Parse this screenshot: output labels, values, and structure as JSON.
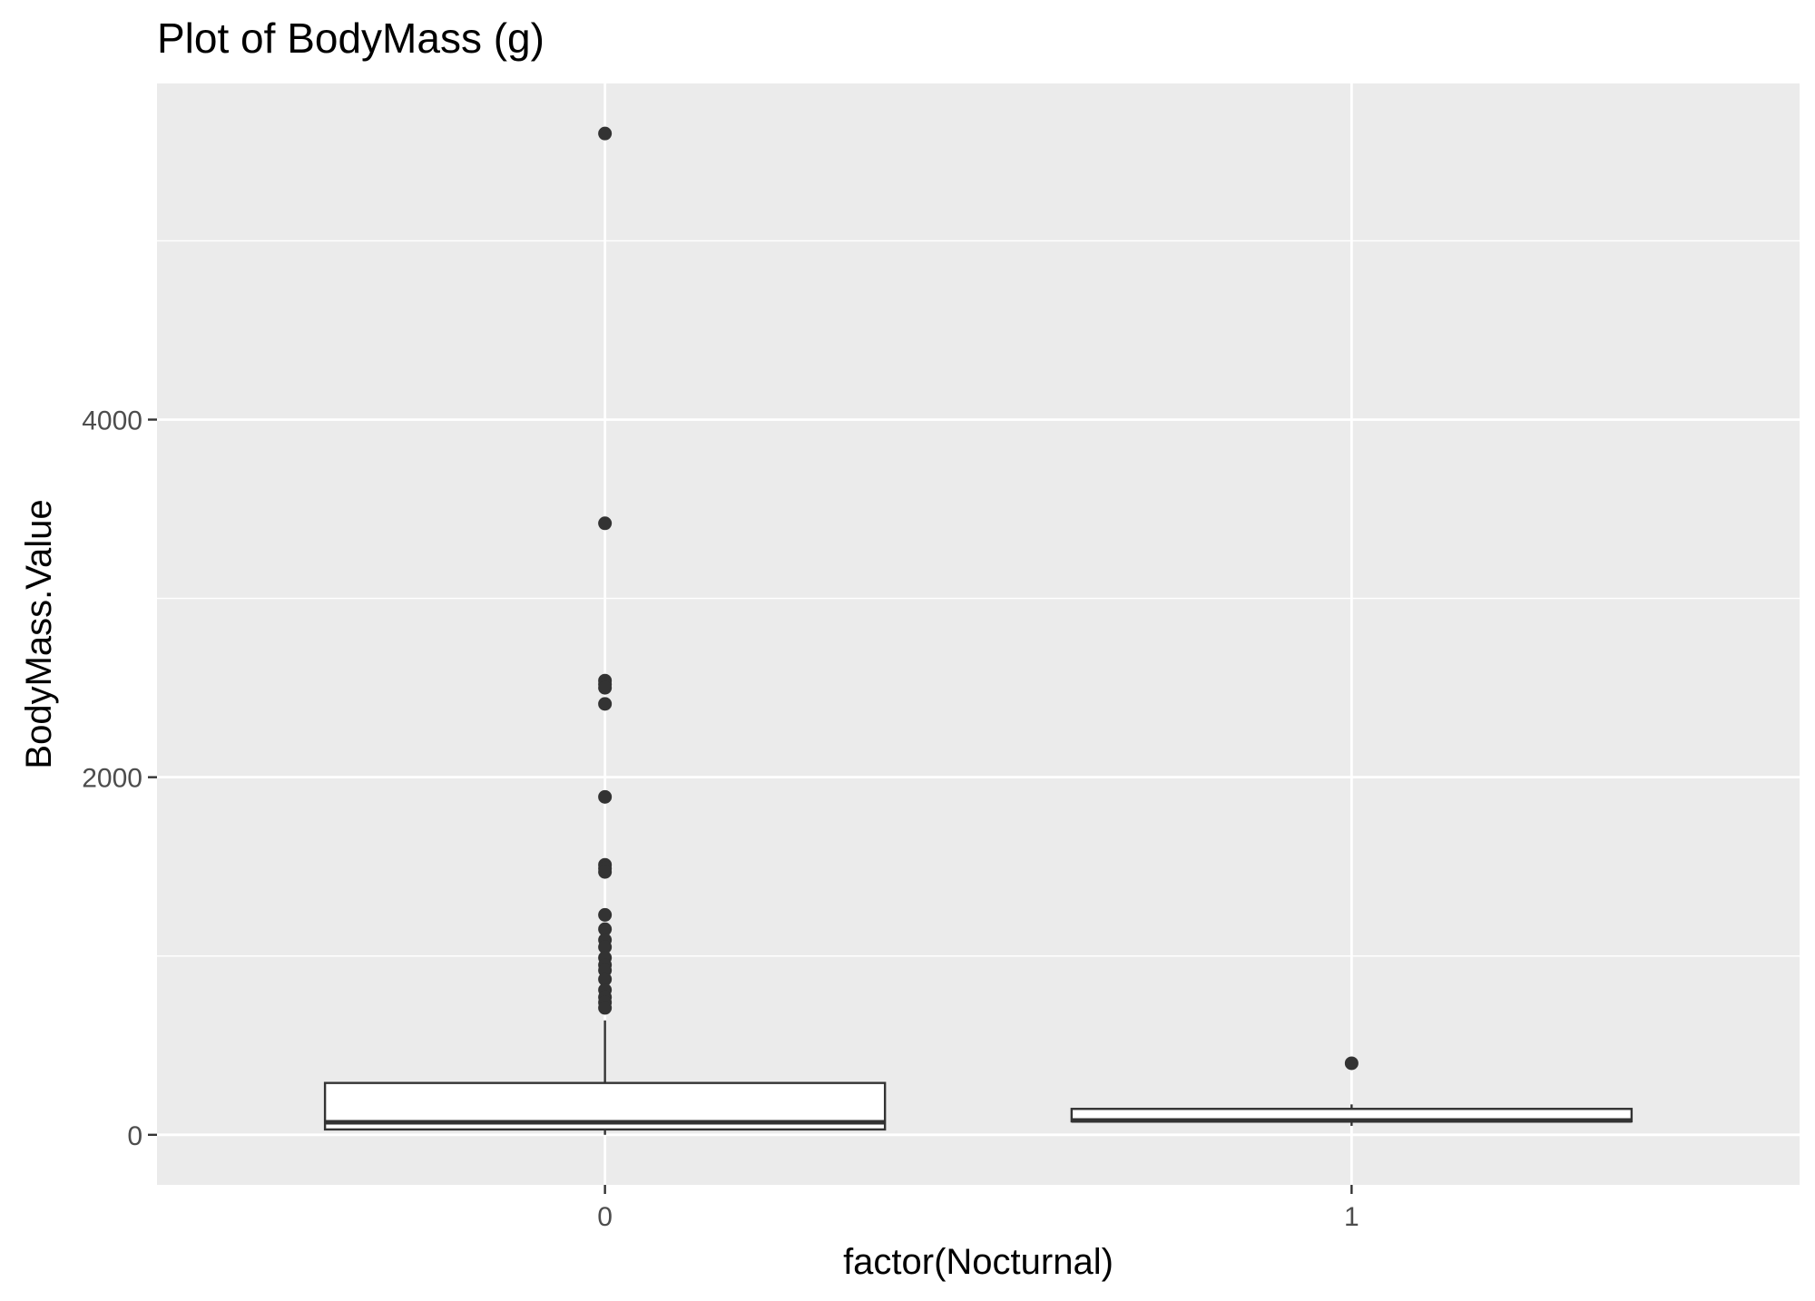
{
  "chart_data": {
    "type": "box",
    "title": "Plot of BodyMass (g)",
    "xlabel": "factor(Nocturnal)",
    "ylabel": "BodyMass.Value",
    "categories": [
      "0",
      "1"
    ],
    "y_ticks": [
      0,
      2000,
      4000
    ],
    "y_tick_labels": [
      "0",
      "2000",
      "4000"
    ],
    "ylim": [
      -280,
      5880
    ],
    "grid": true,
    "legend": "none",
    "panel_color": "#ebebeb",
    "box_fill": "#ffffff",
    "line_color": "#333333",
    "boxes": [
      {
        "category": "0",
        "lower_whisker": 0,
        "q1": 30,
        "median": 70,
        "q3": 290,
        "upper_whisker": 640,
        "outliers": [
          5600,
          3420,
          2540,
          2520,
          2500,
          2410,
          1890,
          1510,
          1490,
          1470,
          1230,
          1150,
          1090,
          1050,
          990,
          950,
          920,
          870,
          810,
          770,
          740,
          710
        ]
      },
      {
        "category": "1",
        "lower_whisker": 50,
        "q1": 75,
        "median": 80,
        "q3": 145,
        "upper_whisker": 170,
        "outliers": [
          400
        ]
      }
    ]
  }
}
